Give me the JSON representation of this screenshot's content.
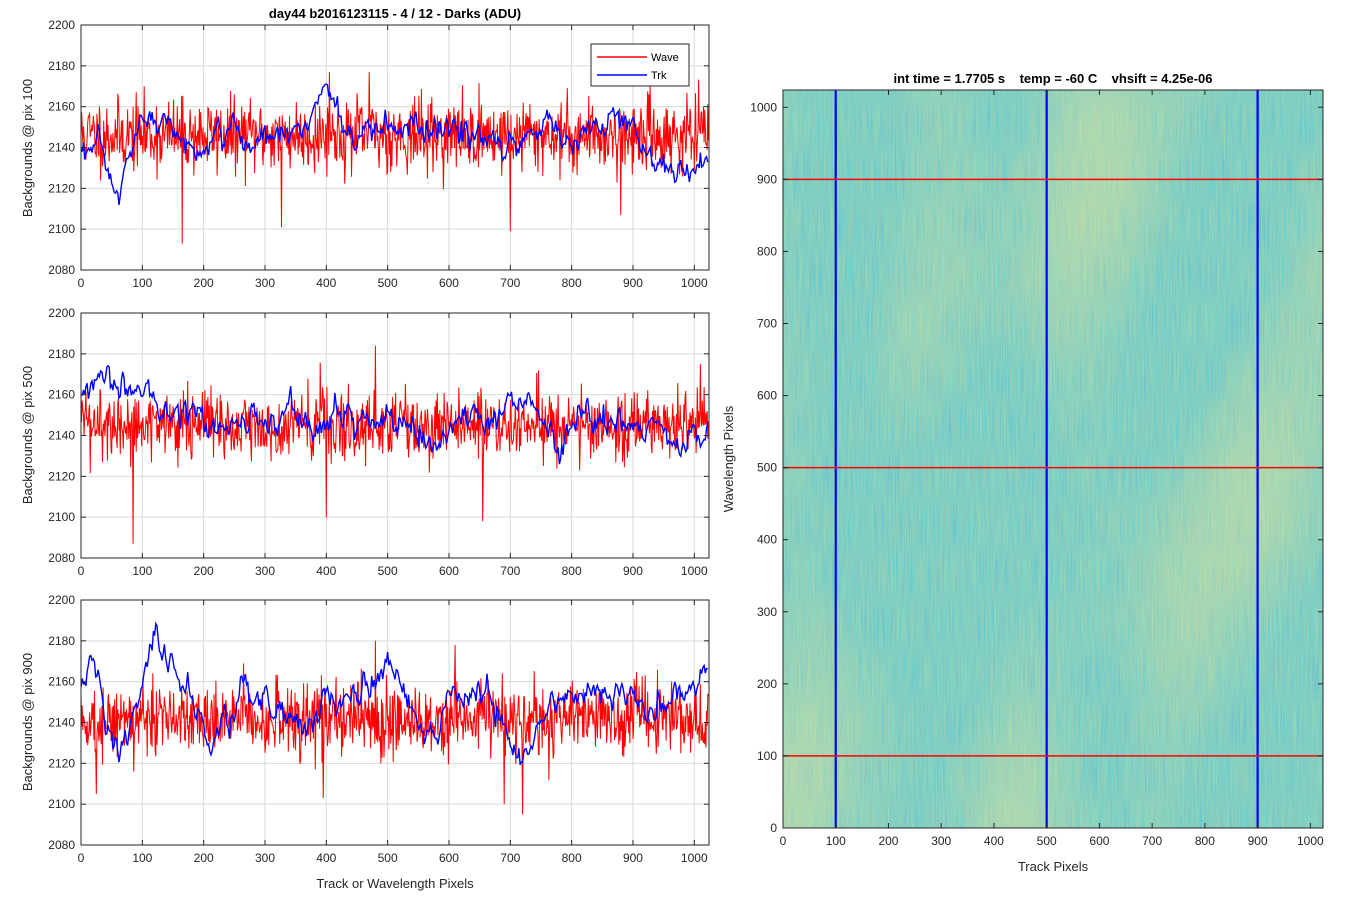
{
  "figure_title": "day44 b2016123115 - 4 / 12 - Darks (ADU)",
  "colors": {
    "wave": "#ff0000",
    "trk": "#0000ff",
    "grid": "#d9d9d9",
    "axis": "#262626"
  },
  "chart_data": [
    {
      "type": "line",
      "title": "day44 b2016123115 - 4 / 12 - Darks (ADU)",
      "xlabel": "",
      "ylabel": "Backgrounds @ pix 100",
      "xlim": [
        0,
        1024
      ],
      "ylim": [
        2080,
        2200
      ],
      "xticks": [
        0,
        100,
        200,
        300,
        400,
        500,
        600,
        700,
        800,
        900,
        1000
      ],
      "yticks": [
        2080,
        2100,
        2120,
        2140,
        2160,
        2180,
        2200
      ],
      "grid": true,
      "legend": {
        "position": "top-right",
        "entries": [
          "Wave",
          "Trk"
        ]
      },
      "series": [
        {
          "name": "Wave",
          "color": "#ff0000",
          "mean": 2146,
          "noise_sd": 11,
          "n_points": 1024,
          "notable_points": [
            [
              165,
              2093
            ],
            [
              327,
              2101
            ],
            [
              405,
              2177
            ],
            [
              700,
              2099
            ],
            [
              880,
              2107
            ],
            [
              470,
              2177
            ]
          ]
        },
        {
          "name": "Trk",
          "color": "#0000ff",
          "x": [
            0,
            20,
            40,
            60,
            80,
            100,
            130,
            160,
            200,
            240,
            280,
            320,
            360,
            400,
            420,
            450,
            480,
            520,
            560,
            600,
            640,
            680,
            720,
            760,
            800,
            840,
            880,
            920,
            960,
            1000,
            1023
          ],
          "y": [
            2135,
            2140,
            2130,
            2115,
            2135,
            2150,
            2155,
            2145,
            2135,
            2150,
            2140,
            2150,
            2148,
            2172,
            2155,
            2140,
            2150,
            2148,
            2146,
            2150,
            2145,
            2140,
            2145,
            2155,
            2140,
            2150,
            2155,
            2140,
            2130,
            2128,
            2135
          ]
        }
      ]
    },
    {
      "type": "line",
      "title": "",
      "xlabel": "",
      "ylabel": "Backgrounds @ pix 500",
      "xlim": [
        0,
        1024
      ],
      "ylim": [
        2080,
        2200
      ],
      "xticks": [
        0,
        100,
        200,
        300,
        400,
        500,
        600,
        700,
        800,
        900,
        1000
      ],
      "yticks": [
        2080,
        2100,
        2120,
        2140,
        2160,
        2180,
        2200
      ],
      "grid": true,
      "series": [
        {
          "name": "Wave",
          "color": "#ff0000",
          "mean": 2145,
          "noise_sd": 11,
          "n_points": 1024,
          "notable_points": [
            [
              85,
              2087
            ],
            [
              400,
              2100
            ],
            [
              480,
              2184
            ],
            [
              655,
              2098
            ],
            [
              1010,
              2175
            ]
          ]
        },
        {
          "name": "Trk",
          "color": "#0000ff",
          "x": [
            0,
            30,
            60,
            90,
            110,
            140,
            170,
            200,
            240,
            280,
            300,
            340,
            380,
            420,
            460,
            500,
            540,
            580,
            620,
            660,
            700,
            740,
            780,
            820,
            860,
            900,
            940,
            980,
            1023
          ],
          "y": [
            2160,
            2165,
            2168,
            2162,
            2160,
            2152,
            2155,
            2148,
            2145,
            2150,
            2145,
            2155,
            2140,
            2150,
            2148,
            2150,
            2145,
            2140,
            2150,
            2145,
            2160,
            2155,
            2130,
            2150,
            2148,
            2140,
            2145,
            2130,
            2148
          ]
        }
      ]
    },
    {
      "type": "line",
      "title": "",
      "xlabel": "Track or Wavelength Pixels",
      "ylabel": "Backgrounds @ pix 900",
      "xlim": [
        0,
        1024
      ],
      "ylim": [
        2080,
        2200
      ],
      "xticks": [
        0,
        100,
        200,
        300,
        400,
        500,
        600,
        700,
        800,
        900,
        1000
      ],
      "yticks": [
        2080,
        2100,
        2120,
        2140,
        2160,
        2180,
        2200
      ],
      "grid": true,
      "series": [
        {
          "name": "Wave",
          "color": "#ff0000",
          "mean": 2142,
          "noise_sd": 11,
          "n_points": 1024,
          "notable_points": [
            [
              25,
              2105
            ],
            [
              395,
              2103
            ],
            [
              690,
              2100
            ],
            [
              720,
              2095
            ],
            [
              480,
              2180
            ],
            [
              610,
              2178
            ]
          ]
        },
        {
          "name": "Trk",
          "color": "#0000ff",
          "x": [
            0,
            20,
            40,
            60,
            90,
            120,
            150,
            180,
            210,
            250,
            290,
            330,
            360,
            400,
            440,
            480,
            500,
            520,
            560,
            600,
            640,
            680,
            700,
            720,
            760,
            800,
            840,
            880,
            920,
            960,
            1000,
            1023
          ],
          "y": [
            2162,
            2170,
            2140,
            2125,
            2150,
            2180,
            2165,
            2150,
            2125,
            2150,
            2155,
            2145,
            2135,
            2155,
            2150,
            2160,
            2175,
            2160,
            2130,
            2150,
            2155,
            2150,
            2130,
            2125,
            2145,
            2150,
            2160,
            2155,
            2140,
            2150,
            2160,
            2165
          ]
        }
      ]
    },
    {
      "type": "heatmap",
      "title": "int time = 1.7705 s    temp = -60 C    vhsift = 4.25e-06",
      "xlabel": "Track Pixels",
      "ylabel": "Wavelength Pixels",
      "xlim": [
        0,
        1024
      ],
      "ylim": [
        0,
        1024
      ],
      "xticks": [
        0,
        100,
        200,
        300,
        400,
        500,
        600,
        700,
        800,
        900,
        1000
      ],
      "yticks": [
        0,
        100,
        200,
        300,
        400,
        500,
        600,
        700,
        800,
        900,
        1000
      ],
      "grid": false,
      "colormap": [
        "#1fa3c9",
        "#3fb5a4",
        "#8fc476",
        "#c7c45a"
      ],
      "vertical_markers": {
        "color": "#0000ff",
        "x": [
          100,
          500,
          900
        ]
      },
      "horizontal_markers": {
        "color": "#ff0000",
        "y": [
          100,
          500,
          900
        ]
      }
    }
  ]
}
